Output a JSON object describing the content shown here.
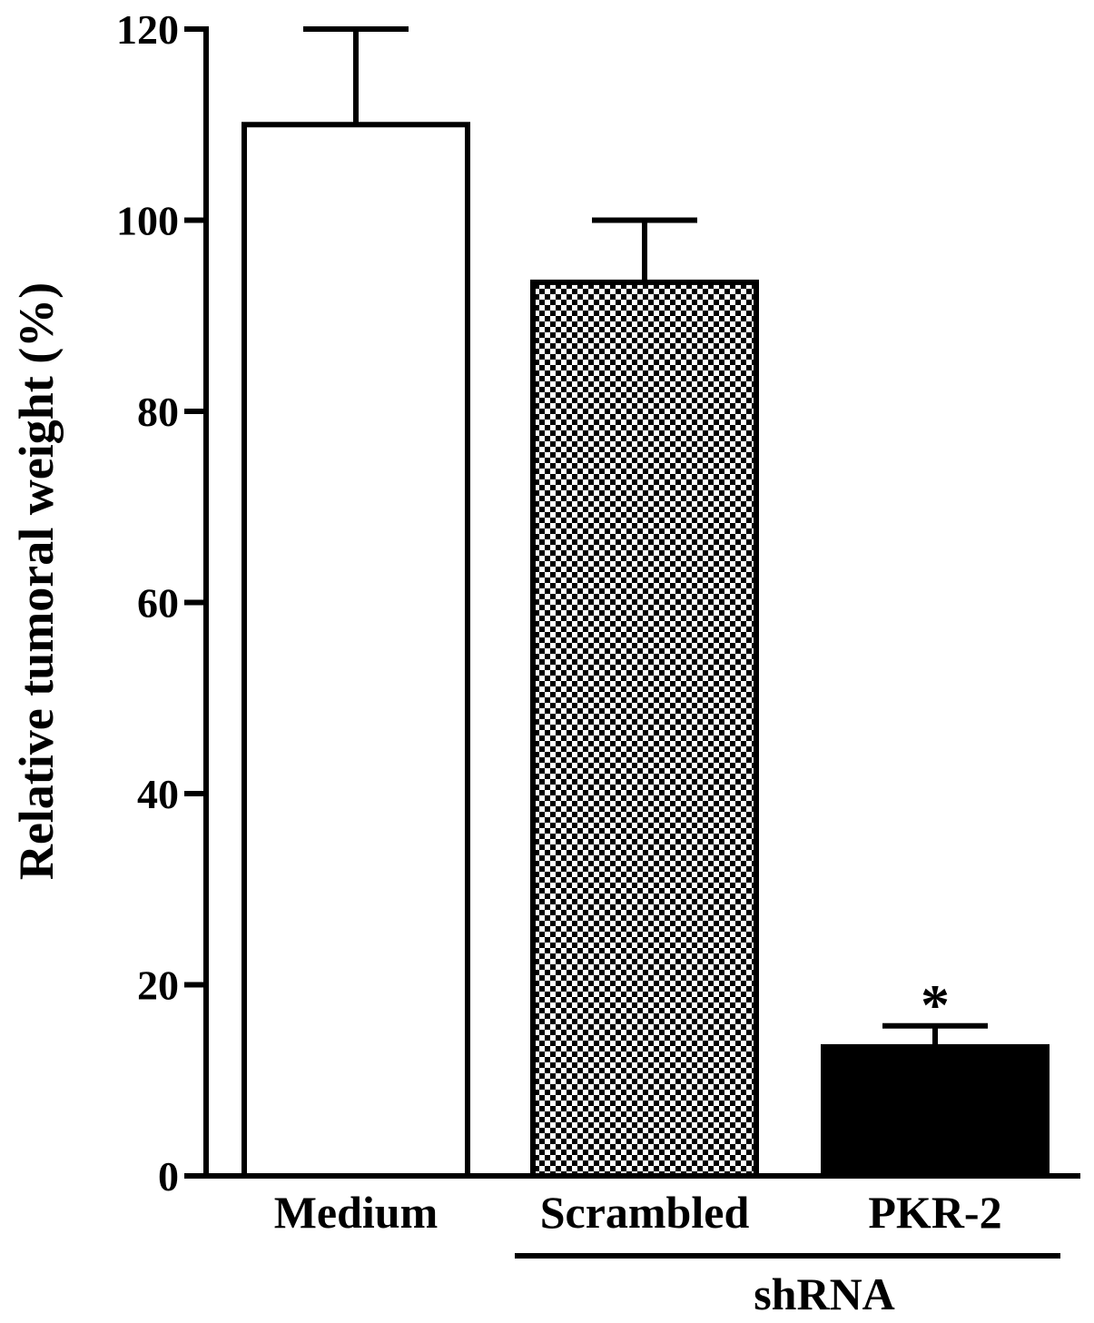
{
  "chart_data": {
    "type": "bar",
    "title": "",
    "xlabel": "",
    "ylabel": "Relative tumoral weight (%)",
    "ylim": [
      0,
      120
    ],
    "yticks": [
      0,
      20,
      40,
      60,
      80,
      100,
      120
    ],
    "categories": [
      "Medium",
      "Scrambled",
      "PKR-2"
    ],
    "values": [
      110,
      93.5,
      13.5
    ],
    "errors": [
      10,
      6.5,
      2.2
    ],
    "annotations": [
      "",
      "",
      "*"
    ],
    "fills": [
      "white",
      "checkered",
      "black"
    ],
    "group_label": "shRNA",
    "group_members": [
      "Scrambled",
      "PKR-2"
    ],
    "grid": false,
    "legend": "none",
    "colors": {
      "line": "#000000",
      "background": "#ffffff"
    }
  }
}
